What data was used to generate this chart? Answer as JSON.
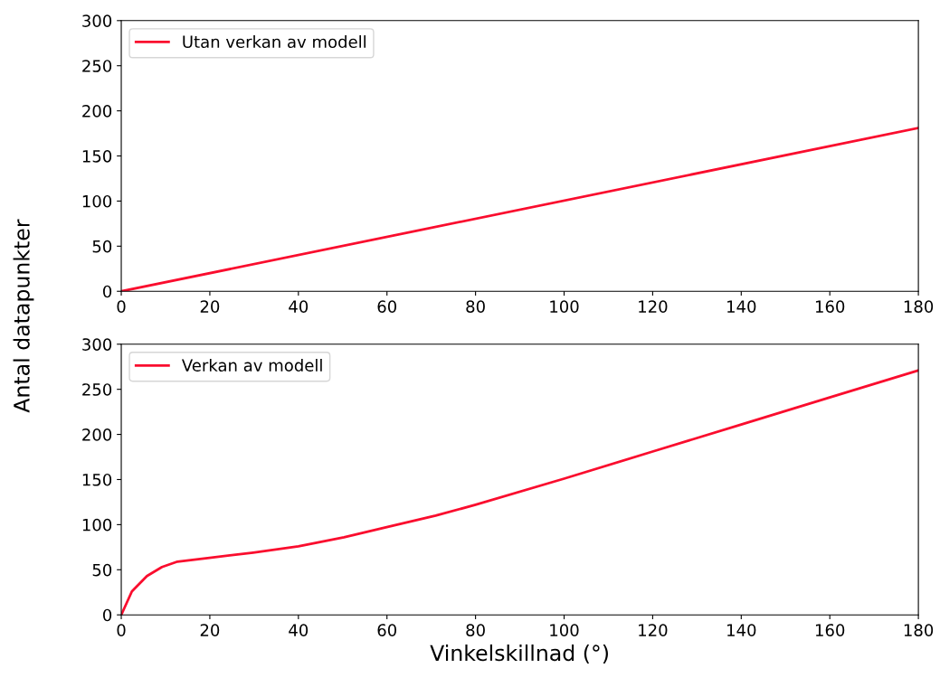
{
  "chart_data": [
    {
      "type": "line",
      "ylabel": "Antal datapunkter",
      "x": [
        0,
        180
      ],
      "xlim": [
        0,
        180
      ],
      "xticks": [
        0,
        20,
        40,
        60,
        80,
        100,
        120,
        140,
        160,
        180
      ],
      "ylim": [
        0,
        300
      ],
      "yticks": [
        0,
        50,
        100,
        150,
        200,
        250,
        300
      ],
      "legend": "top left",
      "grid": false,
      "series": [
        {
          "name": "Utan verkan av modell",
          "color": "#fa0d2e",
          "values": [
            0,
            181
          ]
        }
      ]
    },
    {
      "type": "line",
      "xlabel": "Vinkelskillnad (°)",
      "x": [
        0,
        2.4,
        5.8,
        9.2,
        12.7,
        19.5,
        29.8,
        40,
        50.3,
        60.6,
        71,
        80,
        100,
        120,
        140,
        160,
        180
      ],
      "xlim": [
        0,
        180
      ],
      "xticks": [
        0,
        20,
        40,
        60,
        80,
        100,
        120,
        140,
        160,
        180
      ],
      "ylim": [
        0,
        300
      ],
      "yticks": [
        0,
        50,
        100,
        150,
        200,
        250,
        300
      ],
      "legend": "top left",
      "grid": false,
      "series": [
        {
          "name": "Verkan av modell",
          "color": "#fa0d2e",
          "values": [
            0,
            26,
            43,
            53,
            59,
            63,
            69,
            76,
            86,
            98,
            110,
            122,
            151,
            181,
            211,
            241,
            271
          ]
        }
      ]
    }
  ]
}
